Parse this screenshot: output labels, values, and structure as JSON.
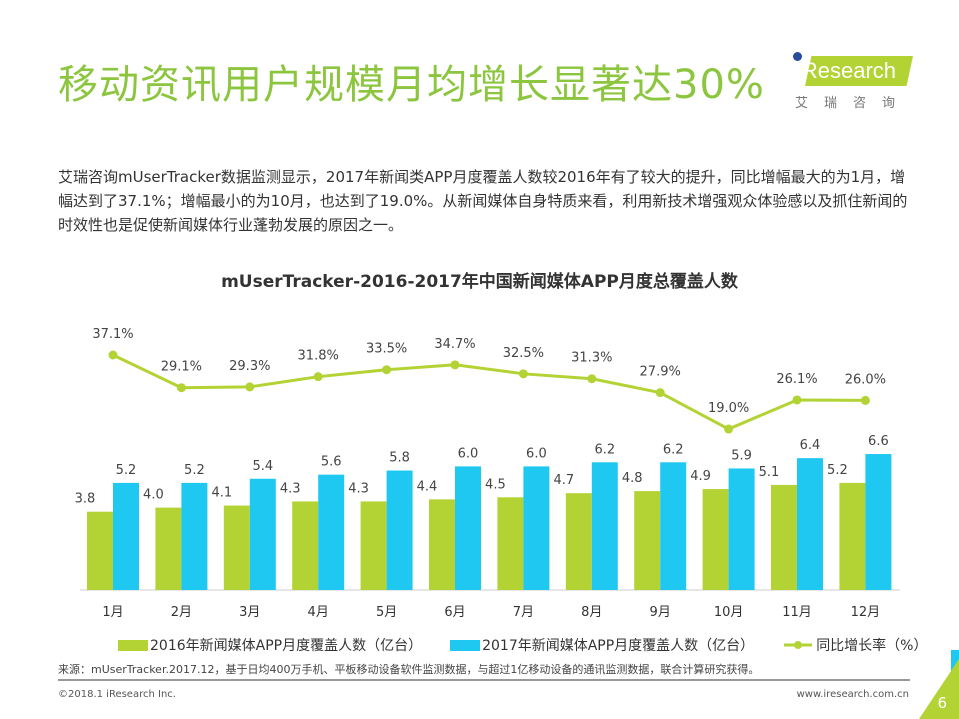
{
  "title": "移动资讯用户规模月均增长显著达30%",
  "logo": {
    "name": "iResearch",
    "cn": "艾瑞咨询"
  },
  "paragraph": "艾瑞咨询mUserTracker数据监测显示，2017年新闻类APP月度覆盖人数较2016年有了较大的提升，同比增幅最大的为1月，增幅达到了37.1%；增幅最小的为10月，也达到了19.0%。从新闻媒体自身特质来看，利用新技术增强观众体验感以及抓住新闻的时效性也是促使新闻媒体行业蓬勃发展的原因之一。",
  "chart_data": {
    "type": "bar+line",
    "title": "mUserTracker-2016-2017年中国新闻媒体APP月度总覆盖人数",
    "categories": [
      "1月",
      "2月",
      "3月",
      "4月",
      "5月",
      "6月",
      "7月",
      "8月",
      "9月",
      "10月",
      "11月",
      "12月"
    ],
    "series": [
      {
        "name": "2016年新闻媒体APP月度覆盖人数（亿台）",
        "type": "bar",
        "color": "#b3d335",
        "values": [
          3.8,
          4.0,
          4.1,
          4.3,
          4.3,
          4.4,
          4.5,
          4.7,
          4.8,
          4.9,
          5.1,
          5.2
        ]
      },
      {
        "name": "2017年新闻媒体APP月度覆盖人数（亿台）",
        "type": "bar",
        "color": "#1fc8f0",
        "values": [
          5.2,
          5.2,
          5.4,
          5.6,
          5.8,
          6.0,
          6.0,
          6.2,
          6.2,
          5.9,
          6.4,
          6.6
        ]
      },
      {
        "name": "同比增长率（%）",
        "type": "line",
        "color": "#b3d335",
        "values": [
          37.1,
          29.1,
          29.3,
          31.8,
          33.5,
          34.7,
          32.5,
          31.3,
          27.9,
          19.0,
          26.1,
          26.0
        ]
      }
    ],
    "grid": false,
    "legend": "bottom"
  },
  "source": "来源：mUserTracker.2017.12，基于日均400万手机、平板移动设备软件监测数据，与超过1亿移动设备的通讯监测数据，联合计算研究获得。",
  "footer": {
    "copyright": "©2018.1 iResearch Inc.",
    "url": "www.iresearch.com.cn",
    "page": "6"
  }
}
